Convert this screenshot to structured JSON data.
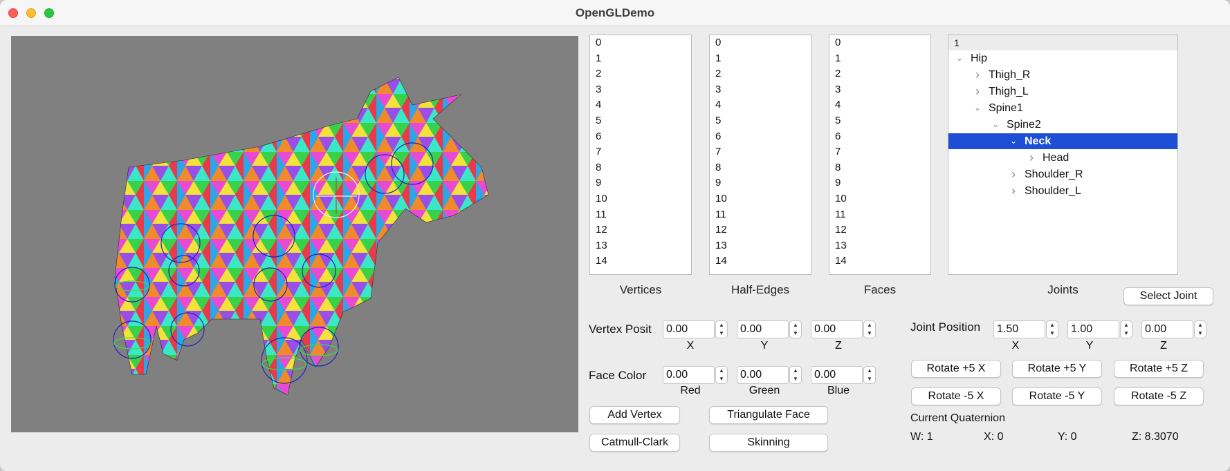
{
  "window": {
    "title": "OpenGLDemo"
  },
  "lists": {
    "vertices": {
      "items": [
        "0",
        "1",
        "2",
        "3",
        "4",
        "5",
        "6",
        "7",
        "8",
        "9",
        "10",
        "11",
        "12",
        "13",
        "14"
      ],
      "caption": "Vertices"
    },
    "half_edges": {
      "items": [
        "0",
        "1",
        "2",
        "3",
        "4",
        "5",
        "6",
        "7",
        "8",
        "9",
        "10",
        "11",
        "12",
        "13",
        "14"
      ],
      "caption": "Half-Edges"
    },
    "faces": {
      "items": [
        "0",
        "1",
        "2",
        "3",
        "4",
        "5",
        "6",
        "7",
        "8",
        "9",
        "10",
        "11",
        "12",
        "13",
        "14"
      ],
      "caption": "Faces"
    }
  },
  "joints": {
    "header": "1",
    "caption": "Joints",
    "nodes": [
      {
        "label": "Hip",
        "depth": 0,
        "expanded": true,
        "selected": false
      },
      {
        "label": "Thigh_R",
        "depth": 1,
        "expanded": false,
        "selected": false
      },
      {
        "label": "Thigh_L",
        "depth": 1,
        "expanded": false,
        "selected": false
      },
      {
        "label": "Spine1",
        "depth": 1,
        "expanded": true,
        "selected": false
      },
      {
        "label": "Spine2",
        "depth": 2,
        "expanded": true,
        "selected": false
      },
      {
        "label": "Neck",
        "depth": 3,
        "expanded": true,
        "selected": true
      },
      {
        "label": "Head",
        "depth": 4,
        "expanded": false,
        "selected": false
      },
      {
        "label": "Shoulder_R",
        "depth": 3,
        "expanded": false,
        "selected": false
      },
      {
        "label": "Shoulder_L",
        "depth": 3,
        "expanded": false,
        "selected": false
      }
    ],
    "select_button": "Select Joint"
  },
  "vertex_position": {
    "label": "Vertex Posit",
    "x": "0.00",
    "y": "0.00",
    "z": "0.00",
    "x_label": "X",
    "y_label": "Y",
    "z_label": "Z"
  },
  "face_color": {
    "label": "Face Color",
    "red": "0.00",
    "green": "0.00",
    "blue": "0.00",
    "red_label": "Red",
    "green_label": "Green",
    "blue_label": "Blue"
  },
  "buttons": {
    "add_vertex": "Add Vertex",
    "triangulate_face": "Triangulate Face",
    "catmull_clark": "Catmull-Clark",
    "skinning": "Skinning"
  },
  "joint_position": {
    "label": "Joint Position",
    "x": "1.50",
    "y": "1.00",
    "z": "0.00",
    "x_label": "X",
    "y_label": "Y",
    "z_label": "Z"
  },
  "rotate": {
    "px": "Rotate +5 X",
    "py": "Rotate +5 Y",
    "pz": "Rotate +5 Z",
    "mx": "Rotate -5 X",
    "my": "Rotate -5 Y",
    "mz": "Rotate -5 Z"
  },
  "quaternion": {
    "label": "Current Quaternion",
    "w": "W: 1",
    "x": "X:  0",
    "y": "Y:  0",
    "z": "Z:  8.3070"
  },
  "colors": {
    "selection": "#1c4fd6",
    "viewport_bg": "#808080"
  }
}
